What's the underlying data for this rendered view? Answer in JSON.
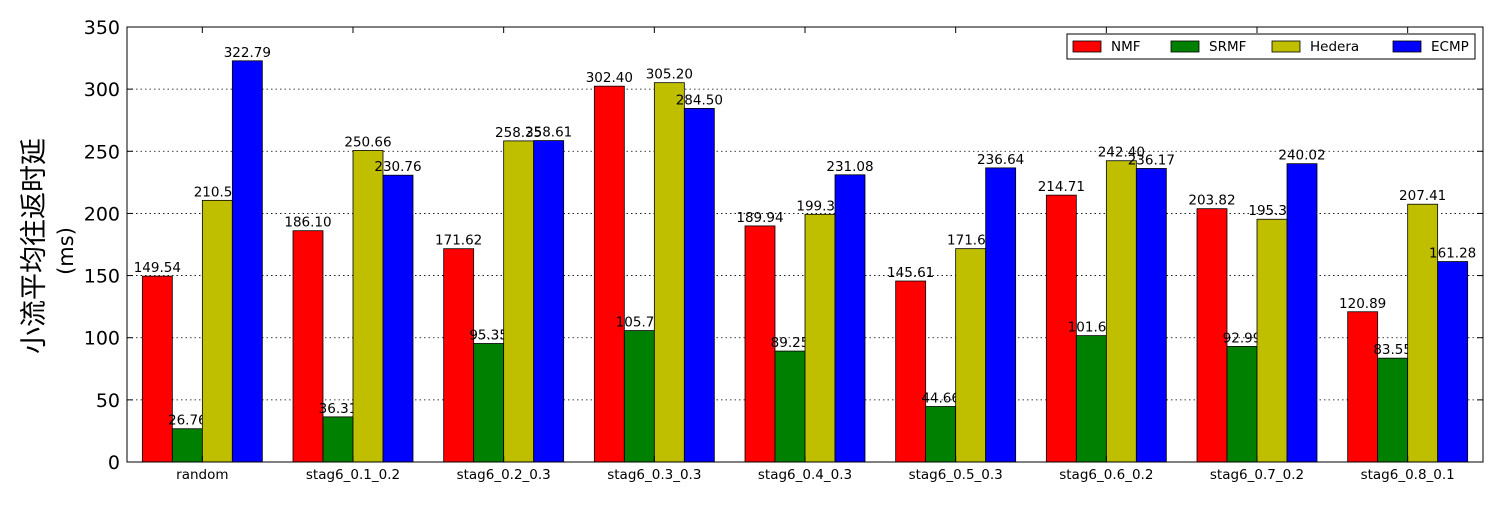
{
  "chart_data": {
    "type": "bar",
    "title": "",
    "xlabel": "",
    "ylabel_main": "小流平均往返时延",
    "ylabel_unit": "(ms)",
    "ylim": [
      0,
      350
    ],
    "yticks": [
      0,
      50,
      100,
      150,
      200,
      250,
      300,
      350
    ],
    "grid": true,
    "legend_position": "top-right",
    "categories": [
      "random",
      "stag6_0.1_0.2",
      "stag6_0.2_0.3",
      "stag6_0.3_0.3",
      "stag6_0.4_0.3",
      "stag6_0.5_0.3",
      "stag6_0.6_0.2",
      "stag6_0.7_0.2",
      "stag6_0.8_0.1"
    ],
    "series": [
      {
        "name": "NMF",
        "color": "#ff0000",
        "values": [
          149.54,
          186.1,
          171.62,
          302.4,
          189.94,
          145.61,
          214.71,
          203.82,
          120.89
        ]
      },
      {
        "name": "SRMF",
        "color": "#008000",
        "values": [
          26.76,
          36.31,
          95.35,
          105.74,
          89.25,
          44.66,
          101.69,
          92.99,
          83.55
        ]
      },
      {
        "name": "Hedera",
        "color": "#bfbf00",
        "values": [
          210.52,
          250.66,
          258.35,
          305.2,
          199.3,
          171.66,
          242.4,
          195.32,
          207.41
        ]
      },
      {
        "name": "ECMP",
        "color": "#0000ff",
        "values": [
          322.79,
          230.76,
          258.61,
          284.5,
          231.08,
          236.64,
          236.17,
          240.02,
          161.28
        ]
      }
    ]
  }
}
